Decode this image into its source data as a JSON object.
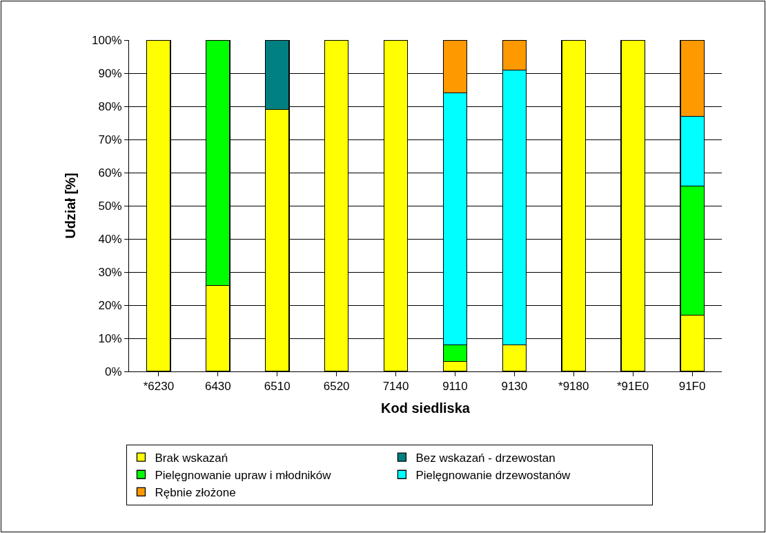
{
  "chart_data": {
    "type": "bar",
    "stacked": true,
    "xlabel": "Kod siedliska",
    "ylabel": "Udział [%]",
    "categories": [
      "*6230",
      "6430",
      "6510",
      "6520",
      "7140",
      "9110",
      "9130",
      "*9180",
      "*91E0",
      "91F0"
    ],
    "series": [
      {
        "name": "Brak wskazań",
        "color": "#ffff00",
        "values": [
          100,
          26,
          79,
          100,
          100,
          3,
          8,
          100,
          100,
          17
        ]
      },
      {
        "name": "Bez wskazań - drzewostan",
        "color": "#008080",
        "values": [
          null,
          null,
          21,
          null,
          null,
          null,
          null,
          null,
          null,
          null
        ]
      },
      {
        "name": "Pielęgnowanie upraw i młodników",
        "color": "#00ff00",
        "values": [
          null,
          74,
          null,
          null,
          null,
          5,
          null,
          null,
          null,
          39
        ]
      },
      {
        "name": "Pielęgnowanie drzewostanów",
        "color": "#00ffff",
        "values": [
          null,
          null,
          null,
          null,
          null,
          76,
          83,
          null,
          null,
          21
        ]
      },
      {
        "name": "Rębnie złożone",
        "color": "#ff9900",
        "values": [
          null,
          null,
          null,
          null,
          null,
          16,
          9,
          null,
          null,
          23
        ]
      }
    ],
    "ylim": [
      0,
      100
    ],
    "yticks": [
      {
        "value": 0,
        "label": "0%"
      },
      {
        "value": 10,
        "label": "10%"
      },
      {
        "value": 20,
        "label": "20%"
      },
      {
        "value": 30,
        "label": "30%"
      },
      {
        "value": 40,
        "label": "40%"
      },
      {
        "value": 50,
        "label": "50%"
      },
      {
        "value": 60,
        "label": "60%"
      },
      {
        "value": 70,
        "label": "70%"
      },
      {
        "value": 80,
        "label": "80%"
      },
      {
        "value": 90,
        "label": "90%"
      },
      {
        "value": 100,
        "label": "100%"
      }
    ],
    "grid": "y",
    "legend": "bottom"
  }
}
